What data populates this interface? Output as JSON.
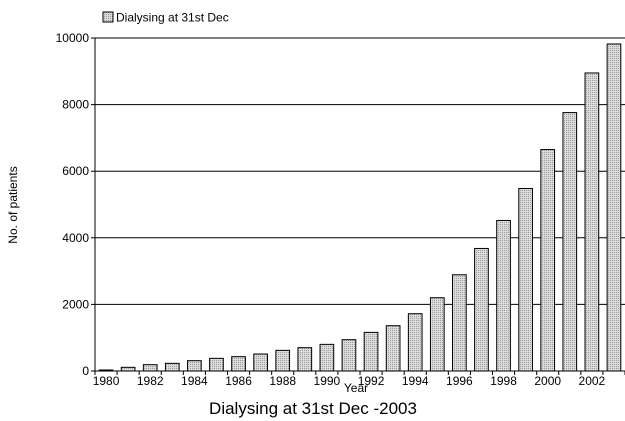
{
  "chart_data": {
    "type": "bar",
    "title": "Dialysing at 31st Dec -2003",
    "xlabel": "Year",
    "ylabel": "No. of patients",
    "legend": {
      "position": "top-left",
      "entries": [
        "Dialysing at 31st Dec"
      ]
    },
    "ylim": [
      0,
      10000
    ],
    "yticks": [
      0,
      2000,
      4000,
      6000,
      8000,
      10000
    ],
    "grid": {
      "y": true,
      "x": false
    },
    "categories": [
      "1980",
      "1981",
      "1982",
      "1983",
      "1984",
      "1985",
      "1986",
      "1987",
      "1988",
      "1989",
      "1990",
      "1991",
      "1992",
      "1993",
      "1994",
      "1995",
      "1996",
      "1997",
      "1998",
      "1999",
      "2000",
      "2001",
      "2002",
      "2003"
    ],
    "xtick_labels": [
      "1980",
      "1982",
      "1984",
      "1986",
      "1988",
      "1990",
      "1992",
      "1994",
      "1996",
      "1998",
      "2000",
      "2002"
    ],
    "series": [
      {
        "name": "Dialysing at 31st Dec",
        "color": "#d0d0d0",
        "values": [
          30,
          110,
          190,
          230,
          310,
          380,
          430,
          510,
          620,
          700,
          800,
          940,
          1160,
          1360,
          1720,
          2200,
          2890,
          3680,
          4520,
          5480,
          6650,
          7760,
          8950,
          9820
        ]
      }
    ]
  }
}
